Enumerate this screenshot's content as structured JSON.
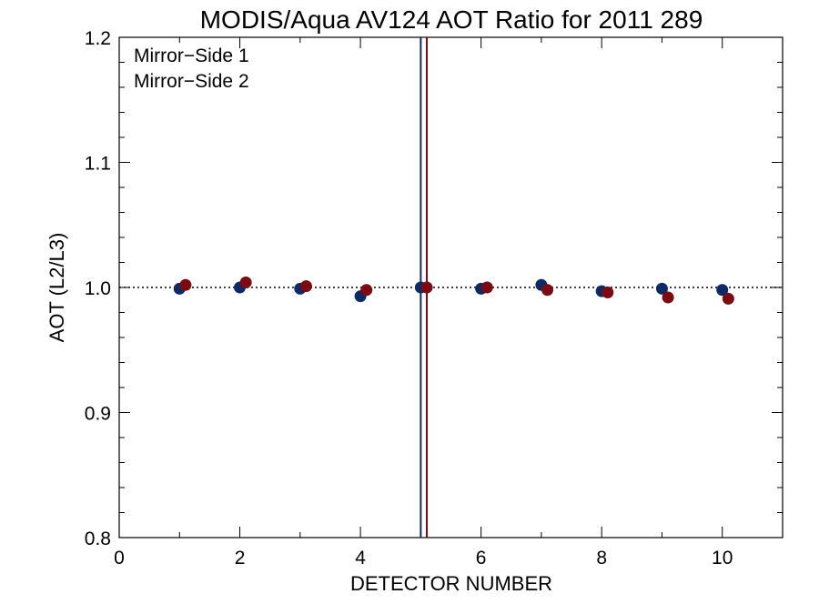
{
  "chart_data": {
    "type": "scatter",
    "title": "MODIS/Aqua AV124 AOT Ratio for 2011 289",
    "xlabel": "DETECTOR NUMBER",
    "ylabel": "AOT (L2/L3)",
    "xlim": [
      0,
      11
    ],
    "ylim": [
      0.8,
      1.2
    ],
    "x_ticks": [
      "0",
      "2",
      "4",
      "6",
      "8",
      "10"
    ],
    "y_ticks": [
      "0.8",
      "0.9",
      "1.0",
      "1.1",
      "1.2"
    ],
    "reference_line_y": 1.0,
    "vertical_lines": [
      {
        "x": 5.0,
        "color": "#0e2a64"
      },
      {
        "x": 5.1,
        "color": "#7a0b12"
      }
    ],
    "legend_position": "top-left",
    "series": [
      {
        "name": "Mirror−Side 1",
        "color": "#0e2a64",
        "x": [
          1,
          2,
          3,
          4,
          5,
          6,
          7,
          8,
          9,
          10
        ],
        "values": [
          0.999,
          1.0,
          0.999,
          0.993,
          1.0,
          0.999,
          1.002,
          0.997,
          0.999,
          0.998
        ]
      },
      {
        "name": "Mirror−Side 2",
        "color": "#7a0b12",
        "x": [
          1.1,
          2.1,
          3.1,
          4.1,
          5.1,
          6.1,
          7.1,
          8.1,
          9.1,
          10.1
        ],
        "values": [
          1.002,
          1.004,
          1.001,
          0.998,
          1.0,
          1.0,
          0.998,
          0.996,
          0.992,
          0.991
        ]
      }
    ]
  }
}
